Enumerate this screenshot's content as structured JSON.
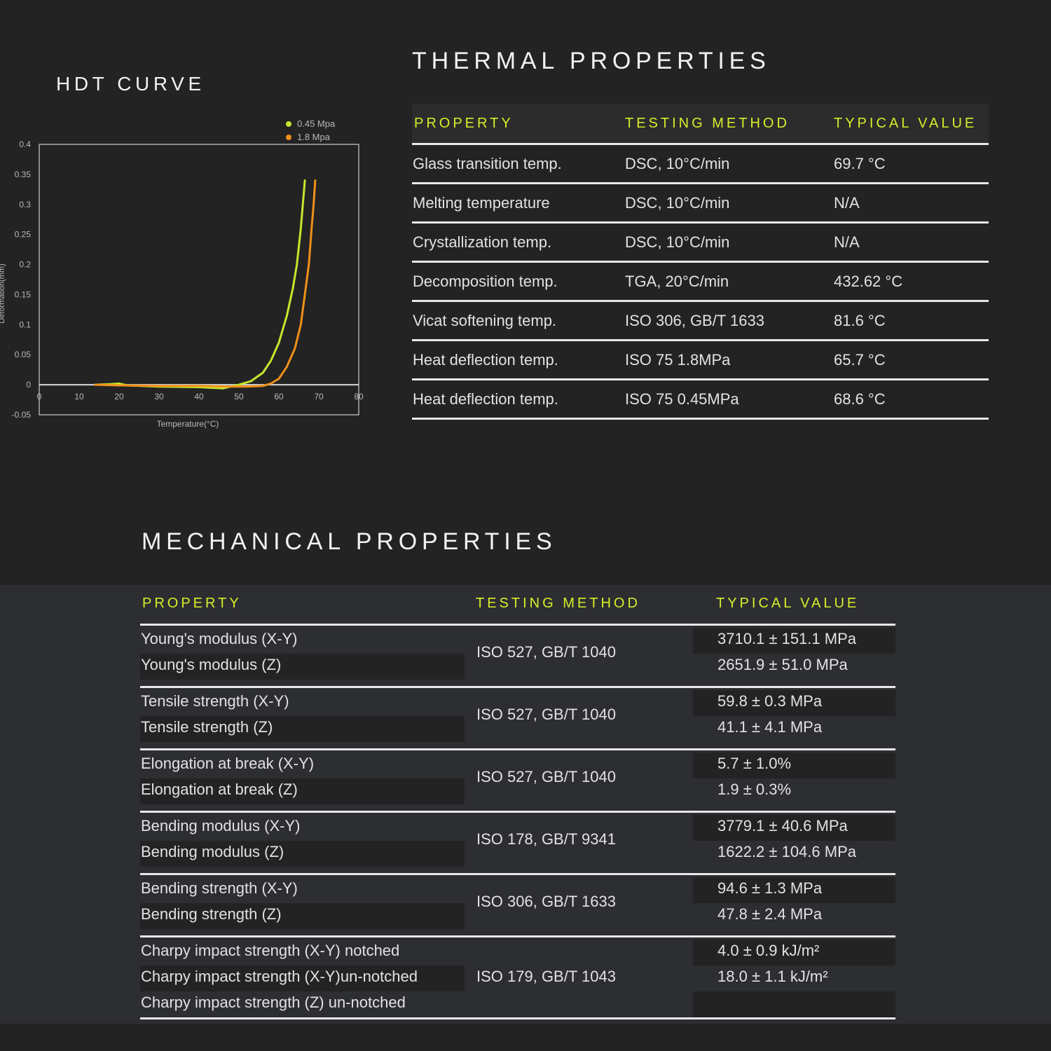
{
  "hdt": {
    "title": "HDT CURVE",
    "chart_data": {
      "type": "line",
      "xlabel": "Temperature(°C)",
      "ylabel": "Deformation(mm)",
      "xlim": [
        0,
        80
      ],
      "ylim": [
        -0.05,
        0.4
      ],
      "x_ticks": [
        "0",
        "10",
        "20",
        "30",
        "40",
        "50",
        "60",
        "70",
        "80"
      ],
      "y_ticks": [
        "0.4",
        "0.35",
        "0.3",
        "0.25",
        "0.2",
        "0.15",
        "0.1",
        "0.05",
        "0",
        "-0.05"
      ],
      "legend_position": "top-right",
      "series": [
        {
          "name": "0.45 Mpa",
          "color": "#c4e82c",
          "points": [
            [
              14,
              0.0
            ],
            [
              18,
              0.001
            ],
            [
              20,
              0.002
            ],
            [
              22,
              -0.001
            ],
            [
              30,
              -0.003
            ],
            [
              40,
              -0.004
            ],
            [
              46,
              -0.006
            ],
            [
              50,
              0.0
            ],
            [
              53,
              0.006
            ],
            [
              56,
              0.02
            ],
            [
              58,
              0.04
            ],
            [
              60,
              0.07
            ],
            [
              62,
              0.115
            ],
            [
              63.5,
              0.16
            ],
            [
              64.5,
              0.2
            ],
            [
              65.5,
              0.26
            ],
            [
              66,
              0.3
            ],
            [
              66.5,
              0.34
            ]
          ]
        },
        {
          "name": "1.8 Mpa",
          "color": "#f0901a",
          "points": [
            [
              14,
              0.0
            ],
            [
              20,
              -0.001
            ],
            [
              30,
              -0.002
            ],
            [
              40,
              -0.002
            ],
            [
              48,
              -0.003
            ],
            [
              52,
              -0.003
            ],
            [
              56,
              -0.002
            ],
            [
              58,
              0.002
            ],
            [
              60,
              0.01
            ],
            [
              62,
              0.03
            ],
            [
              64,
              0.06
            ],
            [
              65.5,
              0.1
            ],
            [
              66.5,
              0.15
            ],
            [
              67.5,
              0.2
            ],
            [
              68.2,
              0.26
            ],
            [
              68.7,
              0.3
            ],
            [
              69.1,
              0.34
            ]
          ]
        }
      ]
    }
  },
  "thermal": {
    "title": "THERMAL PROPERTIES",
    "headers": {
      "property": "PROPERTY",
      "method": "TESTING METHOD",
      "value": "TYPICAL VALUE"
    },
    "rows": [
      {
        "property": "Glass transition temp.",
        "method": "DSC, 10°C/min",
        "value": "69.7 °C"
      },
      {
        "property": "Melting temperature",
        "method": "DSC, 10°C/min",
        "value": "N/A"
      },
      {
        "property": "Crystallization temp.",
        "method": "DSC, 10°C/min",
        "value": "N/A"
      },
      {
        "property": "Decomposition temp.",
        "method": "TGA, 20°C/min",
        "value": "432.62 °C"
      },
      {
        "property": "Vicat softening temp.",
        "method": "ISO 306, GB/T 1633",
        "value": "81.6 °C"
      },
      {
        "property": "Heat deflection temp.",
        "method": "ISO 75 1.8MPa",
        "value": "65.7 °C"
      },
      {
        "property": "Heat deflection temp.",
        "method": "ISO 75 0.45MPa",
        "value": "68.6 °C"
      }
    ]
  },
  "mechanical": {
    "title": "MECHANICAL PROPERTIES",
    "headers": {
      "property": "PROPERTY",
      "method": "TESTING METHOD",
      "value": "TYPICAL VALUE"
    },
    "groups": [
      {
        "method": "ISO 527, GB/T 1040",
        "rows": [
          {
            "property": "Young's modulus (X-Y)",
            "value": "3710.1 ± 151.1 MPa"
          },
          {
            "property": "Young's modulus (Z)",
            "value": "2651.9 ± 51.0 MPa"
          }
        ]
      },
      {
        "method": "ISO 527, GB/T 1040",
        "rows": [
          {
            "property": "Tensile strength (X-Y)",
            "value": "59.8 ± 0.3 MPa"
          },
          {
            "property": "Tensile strength (Z)",
            "value": "41.1 ± 4.1 MPa"
          }
        ]
      },
      {
        "method": "ISO 527, GB/T 1040",
        "rows": [
          {
            "property": "Elongation at break (X-Y)",
            "value": "5.7 ±  1.0%"
          },
          {
            "property": "Elongation at break (Z)",
            "value": "1.9 ±  0.3%"
          }
        ]
      },
      {
        "method": "ISO 178, GB/T 9341",
        "rows": [
          {
            "property": "Bending modulus (X-Y)",
            "value": "3779.1 ± 40.6 MPa"
          },
          {
            "property": "Bending modulus (Z)",
            "value": "1622.2 ± 104.6 MPa"
          }
        ]
      },
      {
        "method": "ISO 306, GB/T 1633",
        "rows": [
          {
            "property": "Bending strength (X-Y)",
            "value": "94.6 ± 1.3 MPa"
          },
          {
            "property": "Bending strength (Z)",
            "value": "47.8 ± 2.4 MPa"
          }
        ]
      },
      {
        "method": "ISO 179,  GB/T 1043",
        "rows": [
          {
            "property": "Charpy impact strength (X-Y) notched",
            "value": "4.0  ± 0.9 kJ/m²"
          },
          {
            "property": "Charpy impact strength (X-Y)un-notched",
            "value": "18.0  ± 1.1 kJ/m²"
          },
          {
            "property": "Charpy impact strength (Z) un-notched",
            "value": ""
          }
        ]
      }
    ]
  }
}
